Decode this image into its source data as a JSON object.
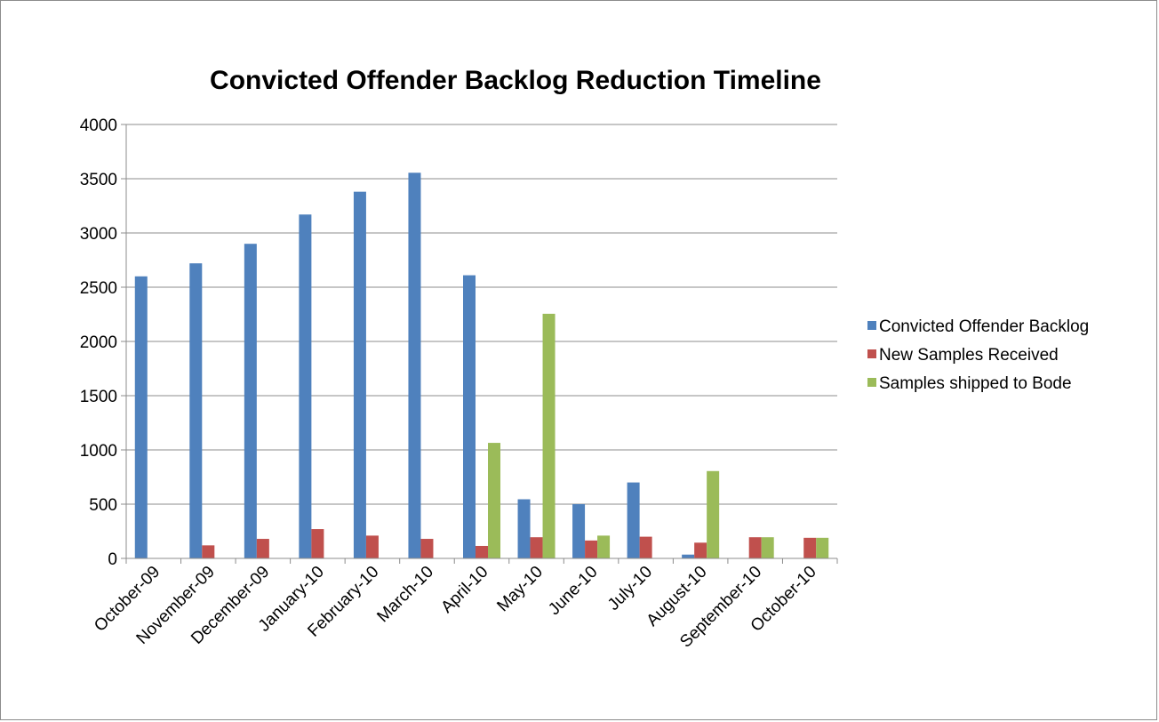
{
  "chart_data": {
    "type": "bar",
    "title": "Convicted Offender Backlog Reduction Timeline",
    "xlabel": "",
    "ylabel": "",
    "ylim": [
      0,
      4000
    ],
    "yticks": [
      0,
      500,
      1000,
      1500,
      2000,
      2500,
      3000,
      3500,
      4000
    ],
    "grid": true,
    "legend_position": "right",
    "categories": [
      "October-09",
      "November-09",
      "December-09",
      "January-10",
      "February-10",
      "March-10",
      "April-10",
      "May-10",
      "June-10",
      "July-10",
      "August-10",
      "September-10",
      "October-10"
    ],
    "series": [
      {
        "name": "Convicted Offender Backlog",
        "color": "#4F81BD",
        "values": [
          2600,
          2720,
          2900,
          3170,
          3380,
          3555,
          2610,
          545,
          500,
          700,
          35,
          0,
          0
        ]
      },
      {
        "name": "New Samples Received",
        "color": "#C0504D",
        "values": [
          0,
          120,
          180,
          270,
          210,
          180,
          115,
          195,
          165,
          200,
          145,
          195,
          190
        ]
      },
      {
        "name": "Samples shipped to Bode",
        "color": "#9BBB59",
        "values": [
          0,
          0,
          0,
          0,
          0,
          0,
          1065,
          2255,
          210,
          0,
          805,
          195,
          190
        ]
      }
    ]
  }
}
